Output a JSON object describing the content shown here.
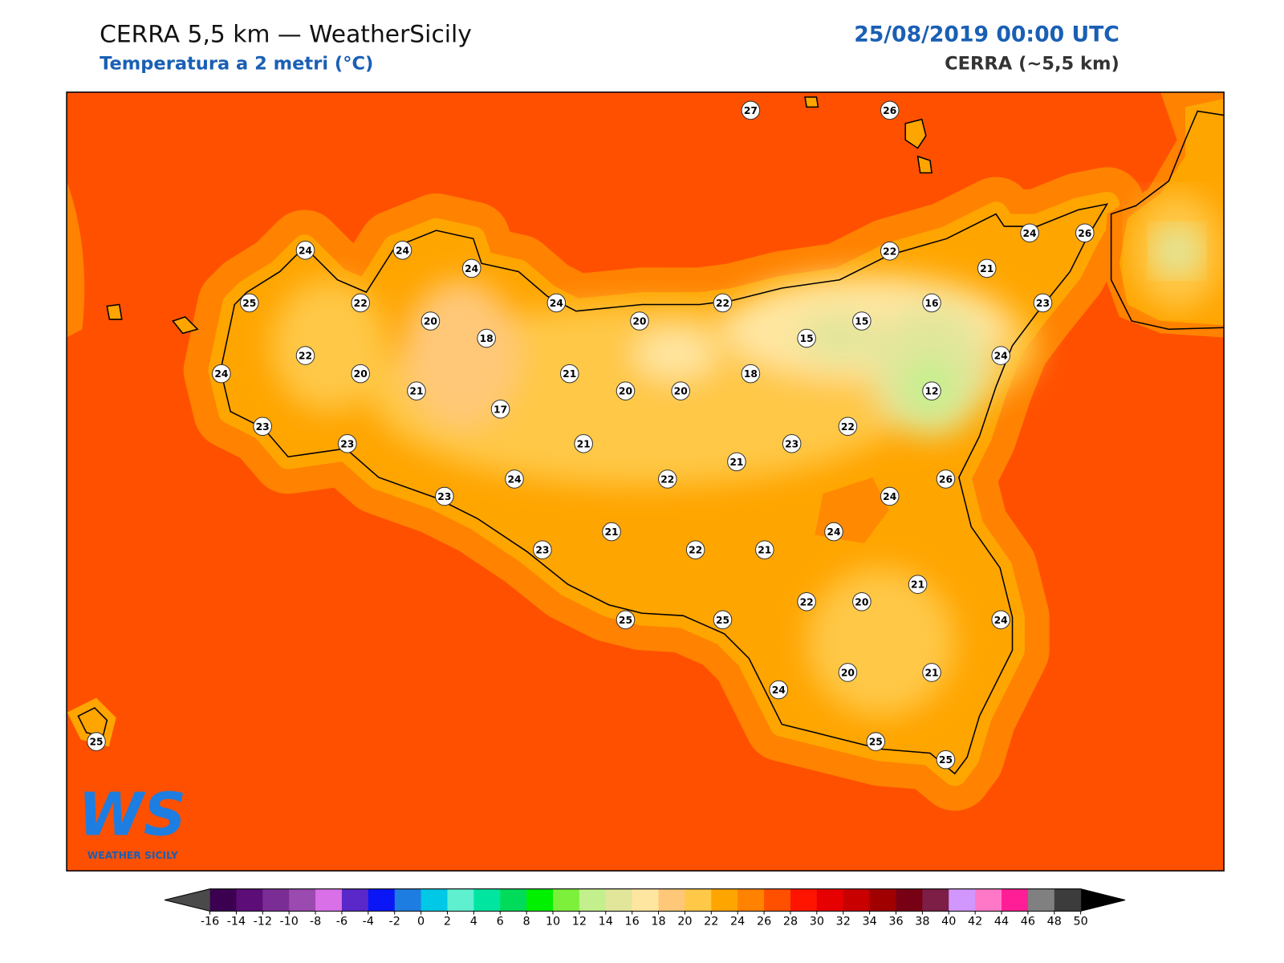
{
  "header": {
    "title": "CERRA 5,5 km — WeatherSicily",
    "subtitle": "Temperatura a 2 metri (°C)",
    "datetime": "25/08/2019 00:00 UTC",
    "model": "CERRA (~5,5 km)"
  },
  "map": {
    "stations": [
      27,
      26,
      24,
      24,
      24,
      24,
      26,
      22,
      21,
      25,
      22,
      24,
      22,
      23,
      20,
      20,
      15,
      16,
      18,
      15,
      22,
      24,
      24,
      20,
      21,
      18,
      21,
      20,
      20,
      12,
      17,
      23,
      22,
      23,
      21,
      23,
      21,
      26,
      24,
      22,
      23,
      24,
      21,
      24,
      23,
      22,
      21,
      21,
      22,
      20,
      25,
      25,
      24,
      20,
      21,
      24,
      25,
      25,
      25
    ]
  },
  "colorbar": {
    "ticks": [
      -16,
      -14,
      -12,
      -10,
      -8,
      -6,
      -4,
      -2,
      0,
      2,
      4,
      6,
      8,
      10,
      12,
      14,
      16,
      18,
      20,
      22,
      24,
      26,
      28,
      30,
      32,
      34,
      36,
      38,
      40,
      42,
      44,
      46,
      48,
      50
    ],
    "colors": [
      "#3b0050",
      "#5c0d78",
      "#7b2d96",
      "#9b4ab0",
      "#d970e8",
      "#5a28c8",
      "#0a16f5",
      "#1e7de0",
      "#00c8e6",
      "#5ff0d0",
      "#00e6a0",
      "#00dc5a",
      "#00f000",
      "#7df03c",
      "#c3f08c",
      "#e1e69b",
      "#ffe6a0",
      "#ffc878",
      "#ffc846",
      "#ffa500",
      "#ff8200",
      "#ff5000",
      "#ff1400",
      "#e60000",
      "#c80000",
      "#a00000",
      "#780014",
      "#7d1e46",
      "#d296ff",
      "#ff78c8",
      "#ff1e96",
      "#808080",
      "#3c3c3c"
    ],
    "under": "#4a4a4a",
    "over": "#000000"
  },
  "logo": {
    "mark": "WS",
    "text": "WEATHER SICILY"
  }
}
